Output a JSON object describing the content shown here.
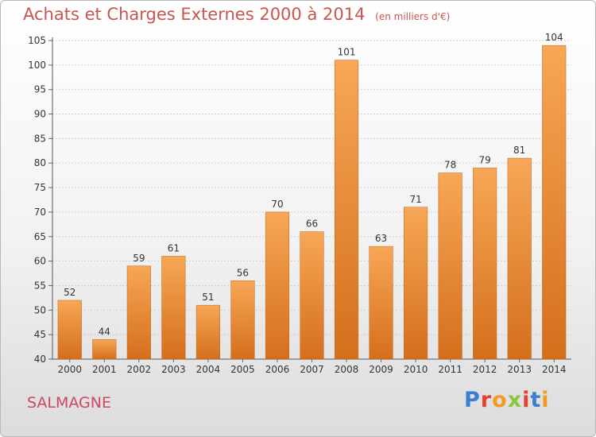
{
  "header": {
    "title": "Achats et Charges Externes 2000 à 2014",
    "unit": "(en milliers d'€)"
  },
  "footer": {
    "commune": "SALMAGNE",
    "logo": "Proxiti",
    "logo_colors": [
      "#3a7fd1",
      "#e8402f",
      "#f39a1f",
      "#8cc63f",
      "#e8402f",
      "#3a7fd1",
      "#f39a1f"
    ]
  },
  "colors": {
    "bar_light": "#f7a756",
    "bar_dark": "#d46f1c",
    "title": "#c8554f",
    "commune": "#d1475f"
  },
  "chart_data": {
    "type": "bar",
    "title": "Achats et Charges Externes 2000 à 2014",
    "xlabel": "",
    "ylabel": "",
    "categories": [
      "2000",
      "2001",
      "2002",
      "2003",
      "2004",
      "2005",
      "2006",
      "2007",
      "2008",
      "2009",
      "2010",
      "2011",
      "2012",
      "2013",
      "2014"
    ],
    "values": [
      52,
      44,
      59,
      61,
      51,
      56,
      70,
      66,
      101,
      63,
      71,
      78,
      79,
      81,
      104
    ],
    "ylim": [
      40,
      105
    ],
    "yticks": [
      40,
      45,
      50,
      55,
      60,
      65,
      70,
      75,
      80,
      85,
      90,
      95,
      100,
      105
    ],
    "grid": true,
    "data_labels": true
  }
}
